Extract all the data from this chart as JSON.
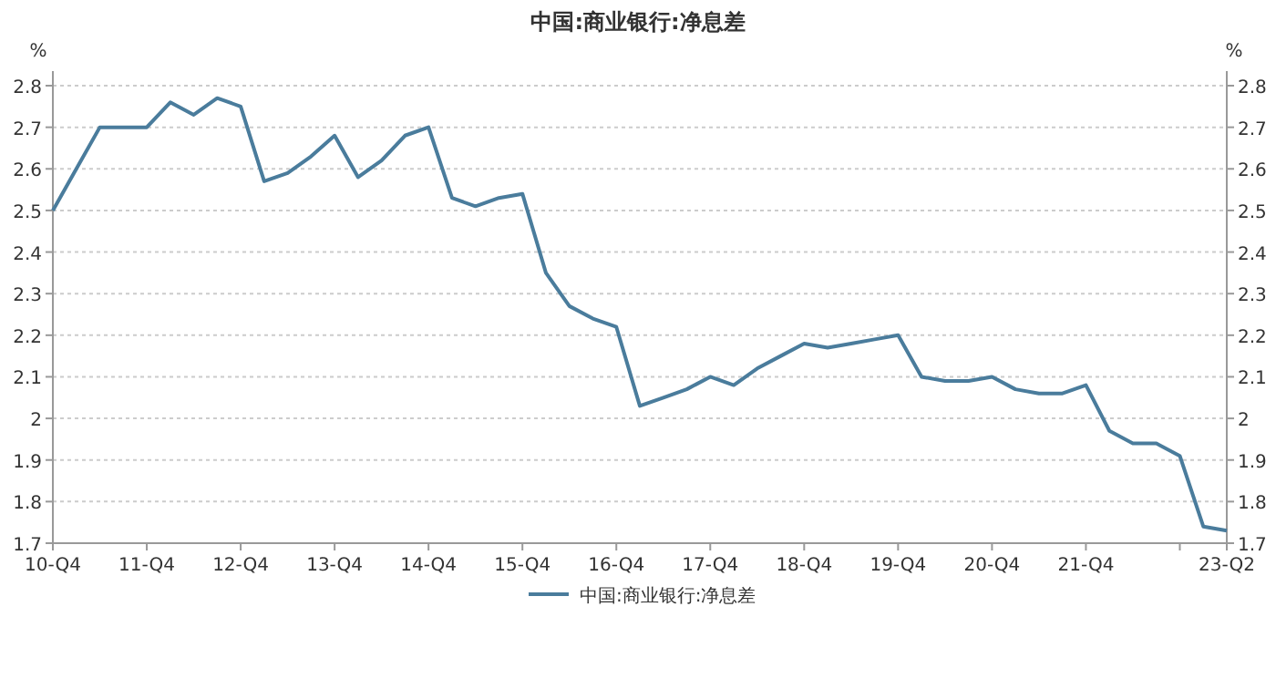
{
  "chart_data": {
    "type": "line",
    "title": "中国:商业银行:净息差",
    "ylabel": "%",
    "y2label": "%",
    "categories": [
      "10-Q4",
      null,
      null,
      null,
      "11-Q4",
      null,
      null,
      null,
      "12-Q4",
      null,
      null,
      null,
      "13-Q4",
      null,
      null,
      null,
      "14-Q4",
      null,
      null,
      null,
      "15-Q4",
      null,
      null,
      null,
      "16-Q4",
      null,
      null,
      null,
      "17-Q4",
      null,
      null,
      null,
      "18-Q4",
      null,
      null,
      null,
      "19-Q4",
      null,
      null,
      null,
      "20-Q4",
      null,
      null,
      null,
      "21-Q4",
      null,
      null,
      null,
      null,
      null,
      "23-Q2"
    ],
    "series": [
      {
        "name": "中国:商业银行:净息差",
        "color": "#4a7c9c",
        "values": [
          2.5,
          2.6,
          2.7,
          2.7,
          2.7,
          2.76,
          2.73,
          2.77,
          2.75,
          2.57,
          2.59,
          2.63,
          2.68,
          2.58,
          2.62,
          2.68,
          2.7,
          2.53,
          2.51,
          2.53,
          2.54,
          2.35,
          2.27,
          2.24,
          2.22,
          2.03,
          2.05,
          2.07,
          2.1,
          2.08,
          2.12,
          2.15,
          2.18,
          2.17,
          2.18,
          2.19,
          2.2,
          2.1,
          2.09,
          2.09,
          2.1,
          2.07,
          2.06,
          2.06,
          2.08,
          1.97,
          1.94,
          1.94,
          1.91,
          1.74,
          1.73
        ]
      }
    ],
    "ylim": [
      1.7,
      2.8
    ],
    "yticks": [
      1.7,
      1.8,
      1.9,
      2,
      2.1,
      2.2,
      2.3,
      2.4,
      2.5,
      2.6,
      2.7,
      2.8
    ],
    "y2lim": [
      1.7,
      2.8
    ],
    "y2ticks": [
      1.7,
      1.8,
      1.9,
      2,
      2.1,
      2.2,
      2.3,
      2.4,
      2.5,
      2.6,
      2.7,
      2.8
    ],
    "grid": "y",
    "legend": "bottom",
    "marker": "none",
    "line_style": "solid"
  }
}
